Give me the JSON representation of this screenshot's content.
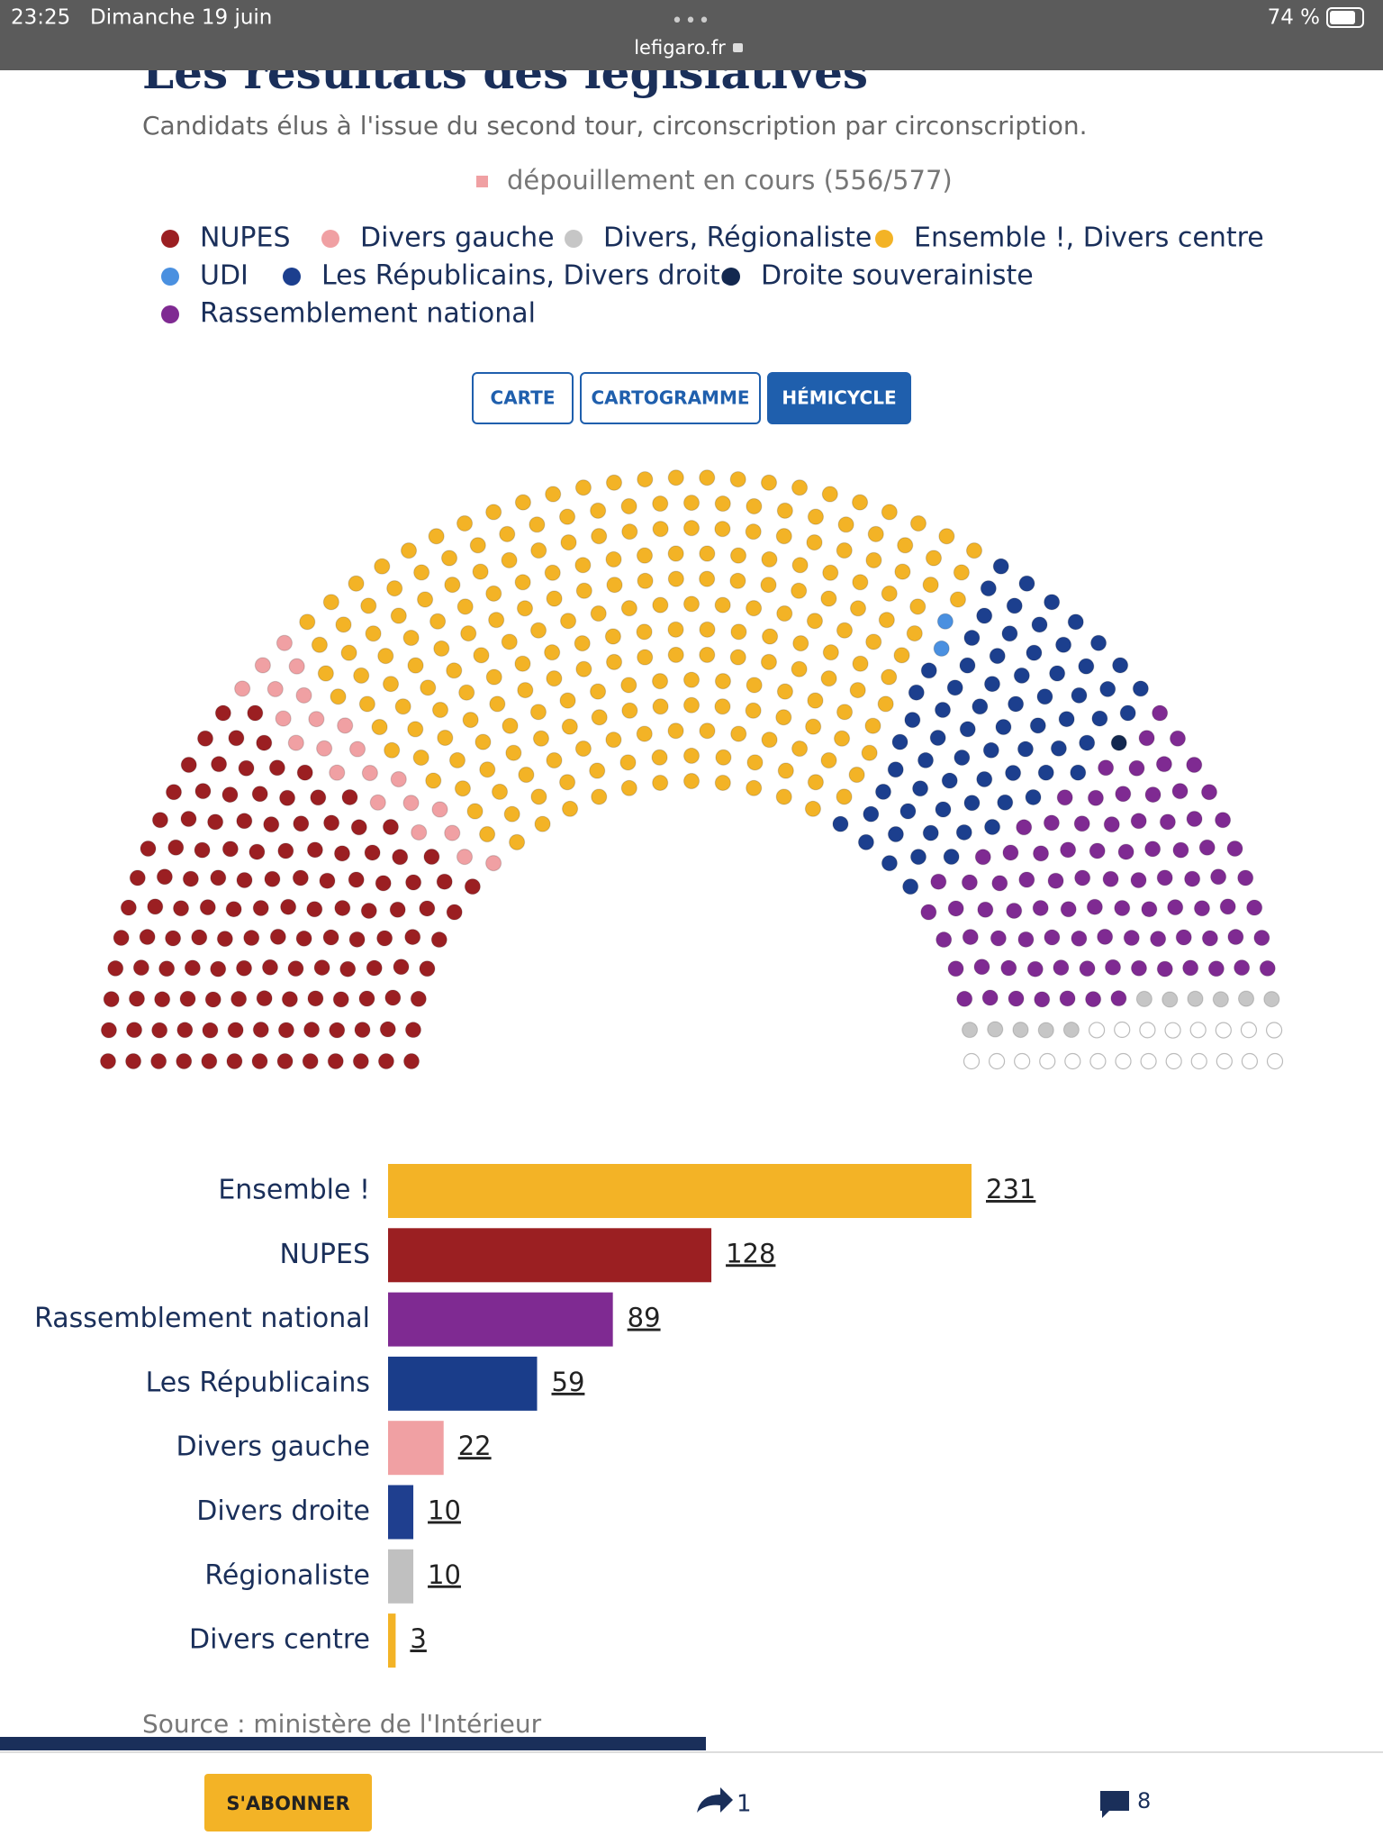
{
  "status_bar": {
    "time": "23:25",
    "date": "Dimanche 19 juin",
    "url": "lefigaro.fr",
    "battery": "74 %"
  },
  "header": {
    "title": "Les résultats des législatives",
    "subtitle": "Candidats élus à l'issue du second tour, circonscription par circonscription."
  },
  "note": {
    "text": "dépouillement en cours (556/577)",
    "color": "#f0a0a3"
  },
  "legend": [
    {
      "label": "NUPES",
      "color": "#9b1f22"
    },
    {
      "label": "Divers gauche",
      "color": "#f0a0a3"
    },
    {
      "label": "Divers, Régionaliste",
      "color": "#c6c6c6"
    },
    {
      "label": "Ensemble !, Divers centre",
      "color": "#f3b326"
    },
    {
      "label": "UDI",
      "color": "#4a90e0"
    },
    {
      "label": "Les Républicains, Divers droite",
      "color": "#1c3f8e"
    },
    {
      "label": "Droite souverainiste",
      "color": "#13284f"
    },
    {
      "label": "Rassemblement national",
      "color": "#7f2a92"
    }
  ],
  "tabs": [
    {
      "label": "CARTE",
      "active": false
    },
    {
      "label": "CARTOGRAMME",
      "active": false
    },
    {
      "label": "HÉMICYCLE",
      "active": true
    }
  ],
  "chart_data": [
    {
      "type": "hemicycle",
      "groups": [
        {
          "color": "#9b1f22",
          "seats": 128
        },
        {
          "color": "#f0a0a3",
          "seats": 22
        },
        {
          "color": "#f3b326",
          "seats": 234
        },
        {
          "color": "#4a90e0",
          "seats": 2
        },
        {
          "color": "#1c3f8e",
          "seats": 69
        },
        {
          "color": "#13284f",
          "seats": 1
        },
        {
          "color": "#7f2a92",
          "seats": 89
        },
        {
          "color": "#c6c6c6",
          "seats": 11
        },
        {
          "color": "#ffffff",
          "seats": 21
        }
      ]
    },
    {
      "type": "bar",
      "orientation": "horizontal",
      "categories": [
        "Ensemble !",
        "NUPES",
        "Rassemblement national",
        "Les Républicains",
        "Divers gauche",
        "Divers droite",
        "Régionaliste",
        "Divers centre"
      ],
      "values": [
        231,
        128,
        89,
        59,
        22,
        10,
        10,
        3
      ],
      "colors": [
        "#f3b326",
        "#9b1f22",
        "#7f2a92",
        "#1a3d8a",
        "#f0a0a3",
        "#1f3f8f",
        "#c0c0c0",
        "#f3b326"
      ],
      "xlim": [
        0,
        231
      ]
    }
  ],
  "source": "Source : ministère de l'Intérieur",
  "toolbar": {
    "subscribe": "S'ABONNER",
    "shares": 1,
    "comments": 8
  }
}
